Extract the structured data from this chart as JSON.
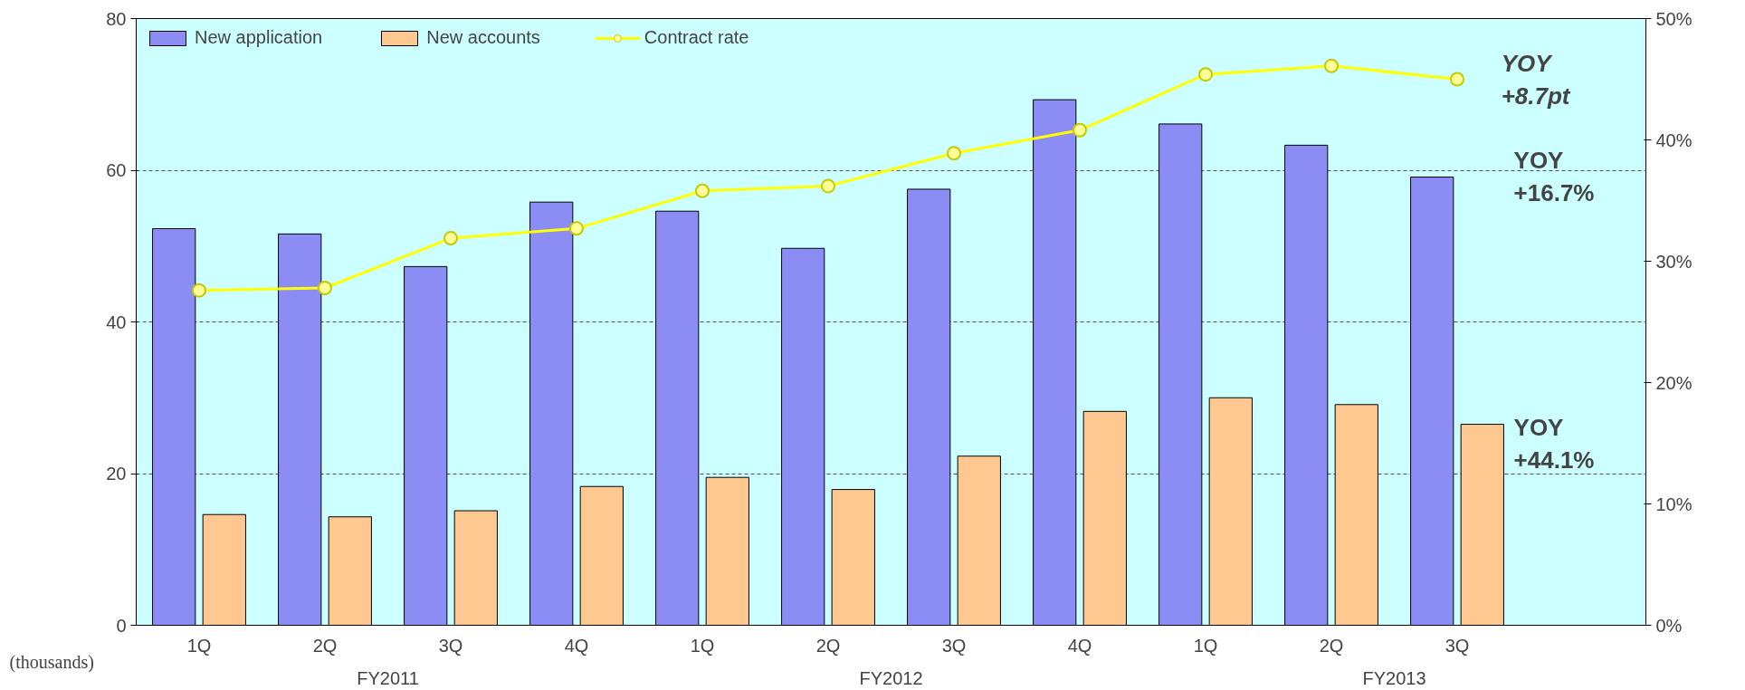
{
  "chart_data": {
    "type": "bar",
    "categories": [
      "1Q",
      "2Q",
      "3Q",
      "4Q",
      "1Q",
      "2Q",
      "3Q",
      "4Q",
      "1Q",
      "2Q",
      "3Q"
    ],
    "series": [
      {
        "name": "New application",
        "color": "#8c8cf5",
        "values": [
          52.3,
          51.6,
          47.3,
          55.8,
          54.6,
          49.7,
          57.5,
          69.3,
          66.1,
          63.3,
          59.1
        ]
      },
      {
        "name": "New accounts",
        "color": "#ffc890",
        "values": [
          14.6,
          14.3,
          15.1,
          18.3,
          19.5,
          17.9,
          22.3,
          28.2,
          30.0,
          29.1,
          26.5
        ]
      },
      {
        "name": "Contract rate",
        "type": "line",
        "axis": "y2",
        "color": "#ffff00",
        "marker": "circle",
        "values": [
          27.6,
          27.8,
          31.9,
          32.7,
          35.8,
          36.2,
          38.9,
          40.8,
          45.4,
          46.1,
          45.0
        ]
      }
    ],
    "ylim": [
      0,
      80
    ],
    "yticks": [
      0,
      20,
      40,
      60,
      80
    ],
    "y2lim": [
      0,
      50
    ],
    "y2ticks": [
      {
        "value": 0,
        "label": "0%"
      },
      {
        "value": 10,
        "label": "10%"
      },
      {
        "value": 20,
        "label": "20%"
      },
      {
        "value": 30,
        "label": "30%"
      },
      {
        "value": 40,
        "label": "40%"
      },
      {
        "value": 50,
        "label": "50%"
      }
    ],
    "grid": "y",
    "legend": "top left",
    "annotations": [
      "(thousands)",
      "FY2011",
      "FY2012",
      "FY2013",
      "YOY\n+8.7pt",
      "YOY\n+16.7%",
      "YOY\n+44.1%"
    ]
  }
}
